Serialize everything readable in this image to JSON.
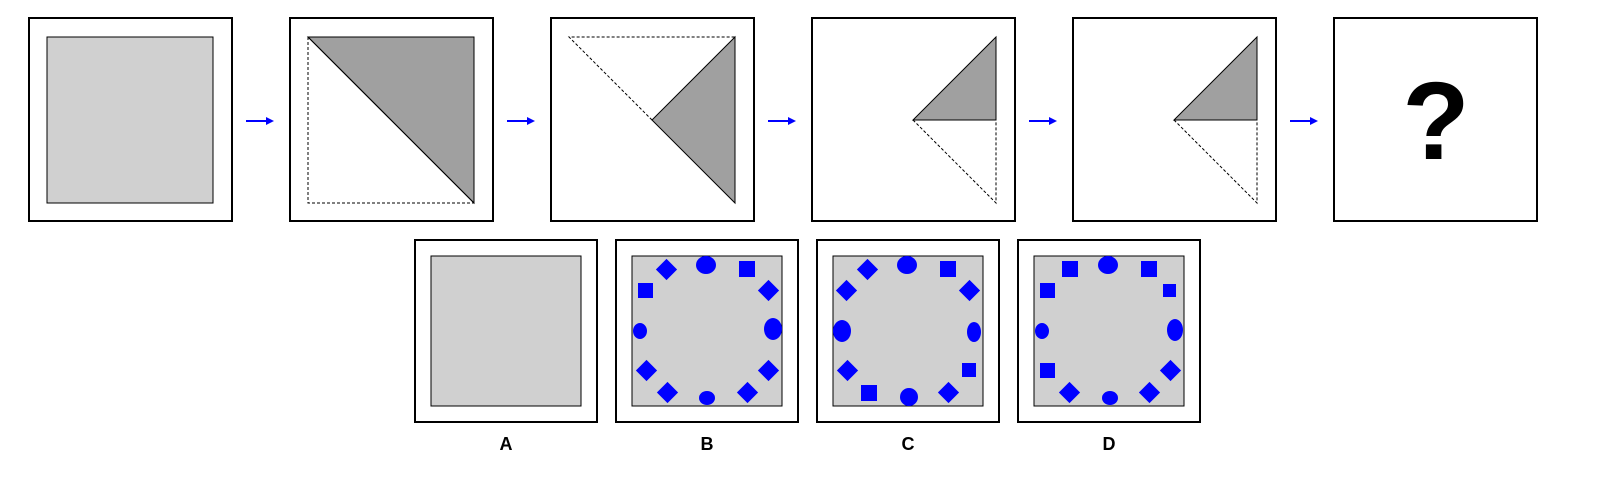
{
  "question_mark": "?",
  "options": [
    {
      "label": "A"
    },
    {
      "label": "B"
    },
    {
      "label": "C"
    },
    {
      "label": "D"
    }
  ],
  "colors": {
    "paper": "#d0d0d0",
    "folded_triangle": "#a0a0a0",
    "arrow": "#0000ff",
    "holes": "#0000ff"
  },
  "icons": [
    "arrow-right-icon",
    "diamond-hole-icon",
    "square-hole-icon",
    "circle-hole-icon"
  ]
}
